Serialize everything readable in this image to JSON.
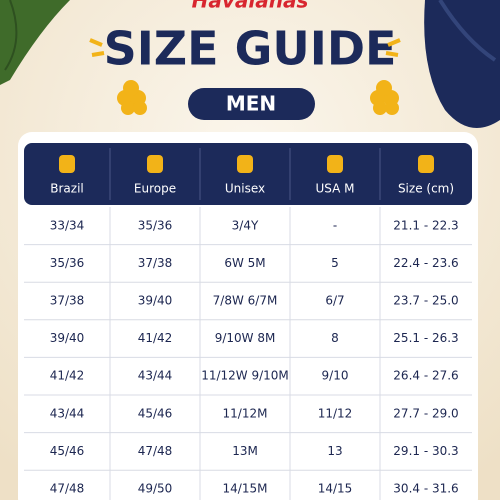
{
  "header": {
    "brand": "Havaianas",
    "title": "SIZE GUIDE",
    "subtitle": "MEN"
  },
  "table": {
    "columns": [
      "Brazil",
      "Europe",
      "Unisex",
      "USA M",
      "Size (cm)"
    ],
    "rows": [
      [
        "33/34",
        "35/36",
        "3/4Y",
        "-",
        "21.1 - 22.3"
      ],
      [
        "35/36",
        "37/38",
        "6W 5M",
        "5",
        "22.4 - 23.6"
      ],
      [
        "37/38",
        "39/40",
        "7/8W 6/7M",
        "6/7",
        "23.7 - 25.0"
      ],
      [
        "39/40",
        "41/42",
        "9/10W 8M",
        "8",
        "25.1 - 26.3"
      ],
      [
        "41/42",
        "43/44",
        "11/12W 9/10M",
        "9/10",
        "26.4 - 27.6"
      ],
      [
        "43/44",
        "45/46",
        "11/12M",
        "11/12",
        "27.7 - 29.0"
      ],
      [
        "45/46",
        "47/48",
        "13M",
        "13",
        "29.1 - 30.3"
      ],
      [
        "47/48",
        "49/50",
        "14/15M",
        "14/15",
        "30.4 - 31.6"
      ]
    ]
  }
}
